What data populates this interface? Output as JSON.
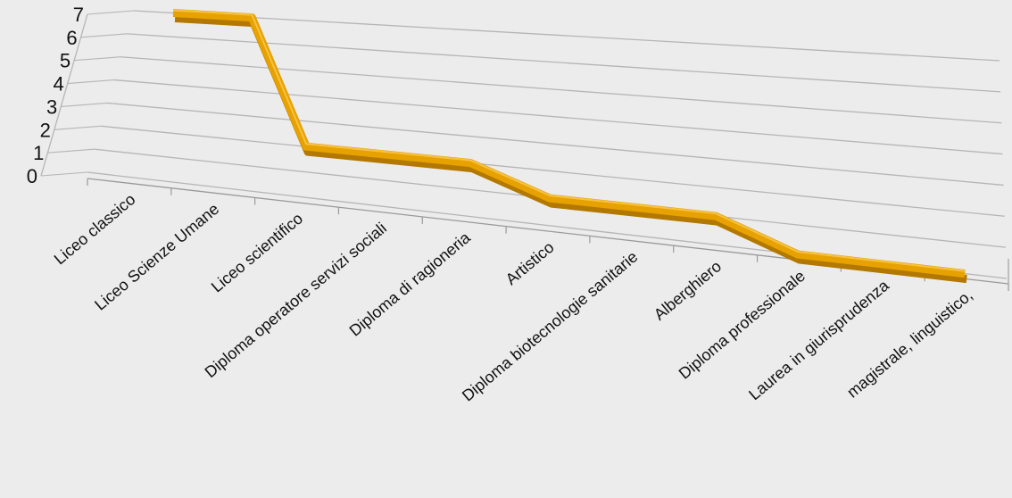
{
  "chart_data": {
    "type": "line",
    "categories": [
      "Liceo classico",
      "Liceo Scienze Umane",
      "Liceo scientifico",
      "Diploma operatore servizi sociali",
      "Diploma di ragioneria",
      "Artistico",
      "Diploma biotecnologie sanitarie",
      "Alberghiero",
      "Diploma professionale",
      "Laurea in giurisprudenza",
      "magistrale, linguistico,"
    ],
    "values": [
      7,
      7,
      2,
      2,
      2,
      1,
      1,
      1,
      0,
      0,
      0
    ],
    "y_ticks": [
      "0",
      "1",
      "2",
      "3",
      "4",
      "5",
      "6",
      "7"
    ],
    "ylim": [
      0,
      7
    ],
    "grid": true,
    "legend": "none",
    "view": "3d-perspective",
    "line_color": "#e8a200",
    "line_shadow_color": "#b37800",
    "grid_color": "#b5b5b5",
    "background": "#ececec"
  }
}
